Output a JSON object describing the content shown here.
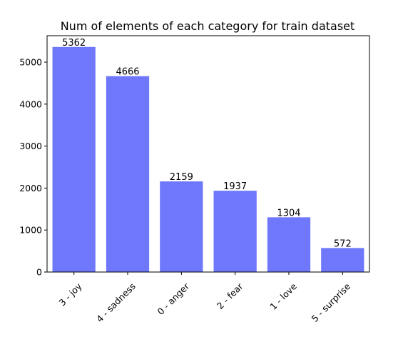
{
  "chart_data": {
    "type": "bar",
    "title": "Num of elements of each category for train dataset",
    "xlabel": "",
    "ylabel": "",
    "categories": [
      "3 - joy",
      "4 - sadness",
      "0 - anger",
      "2 - fear",
      "1 - love",
      "5 - surprise"
    ],
    "values": [
      5362,
      4666,
      2159,
      1937,
      1304,
      572
    ],
    "data_labels": [
      "5362",
      "4666",
      "2159",
      "1937",
      "1304",
      "572"
    ],
    "ylim": [
      0,
      5630
    ],
    "yticks": [
      0,
      1000,
      2000,
      3000,
      4000,
      5000
    ],
    "ytick_labels": [
      "0",
      "1000",
      "2000",
      "3000",
      "4000",
      "5000"
    ],
    "bar_color": "#6f78fa",
    "grid": false,
    "legend": "none"
  }
}
